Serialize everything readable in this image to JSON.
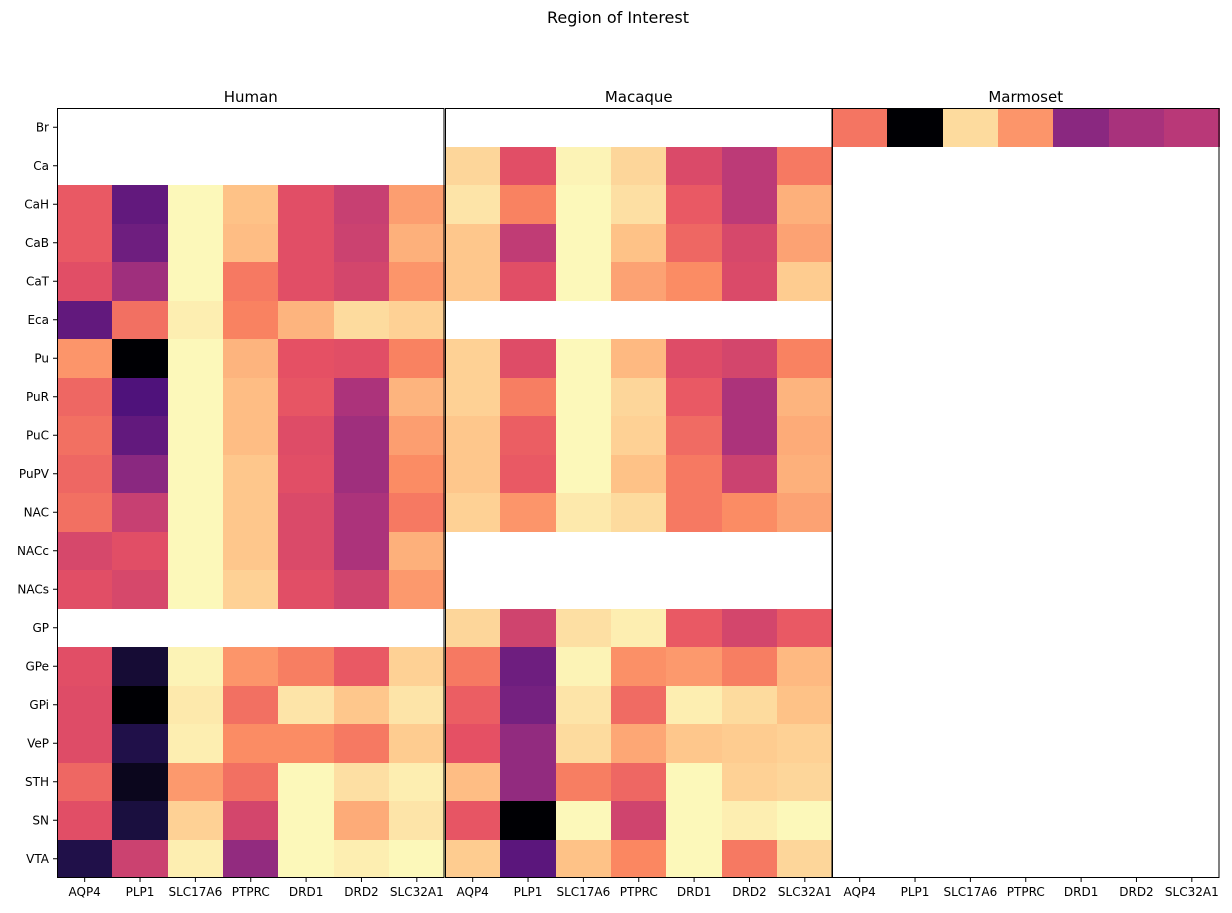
{
  "chart_data": {
    "type": "heatmap",
    "title": "Region of Interest",
    "colormap": "magma",
    "rows": [
      "Br",
      "Ca",
      "CaH",
      "CaB",
      "CaT",
      "Eca",
      "Pu",
      "PuR",
      "PuC",
      "PuPV",
      "NAC",
      "NACc",
      "NACs",
      "GP",
      "GPe",
      "GPi",
      "VeP",
      "STH",
      "SN",
      "VTA"
    ],
    "columns": [
      "AQP4",
      "PLP1",
      "SLC17A6",
      "PTPRC",
      "DRD1",
      "DRD2",
      "SLC32A1"
    ],
    "panels": [
      {
        "name": "Human",
        "values": [
          [
            null,
            null,
            null,
            null,
            null,
            null,
            null
          ],
          [
            null,
            null,
            null,
            null,
            null,
            null,
            null
          ],
          [
            0.65,
            0.3,
            0.99,
            0.88,
            0.62,
            0.55,
            0.8
          ],
          [
            0.65,
            0.33,
            0.99,
            0.87,
            0.62,
            0.56,
            0.84
          ],
          [
            0.62,
            0.45,
            0.99,
            0.72,
            0.62,
            0.58,
            0.78
          ],
          [
            0.3,
            0.7,
            0.97,
            0.74,
            0.85,
            0.93,
            0.91
          ],
          [
            0.78,
            0.0,
            0.99,
            0.85,
            0.63,
            0.62,
            0.74
          ],
          [
            0.68,
            0.25,
            0.99,
            0.87,
            0.64,
            0.48,
            0.85
          ],
          [
            0.7,
            0.3,
            0.99,
            0.87,
            0.61,
            0.45,
            0.8
          ],
          [
            0.68,
            0.4,
            0.99,
            0.89,
            0.62,
            0.45,
            0.76
          ],
          [
            0.7,
            0.55,
            0.99,
            0.89,
            0.6,
            0.48,
            0.72
          ],
          [
            0.59,
            0.62,
            0.99,
            0.89,
            0.6,
            0.48,
            0.84
          ],
          [
            0.62,
            0.59,
            0.99,
            0.91,
            0.62,
            0.57,
            0.79
          ],
          [
            null,
            null,
            null,
            null,
            null,
            null,
            null
          ],
          [
            0.62,
            0.1,
            0.98,
            0.78,
            0.73,
            0.65,
            0.91
          ],
          [
            0.61,
            0.0,
            0.96,
            0.7,
            0.95,
            0.89,
            0.95
          ],
          [
            0.61,
            0.14,
            0.97,
            0.76,
            0.76,
            0.72,
            0.9
          ],
          [
            0.68,
            0.05,
            0.79,
            0.7,
            0.99,
            0.94,
            0.97
          ],
          [
            0.62,
            0.12,
            0.91,
            0.58,
            0.99,
            0.83,
            0.95
          ],
          [
            0.14,
            0.56,
            0.97,
            0.42,
            0.99,
            0.97,
            0.99
          ]
        ]
      },
      {
        "name": "Macaque",
        "values": [
          [
            null,
            null,
            null,
            null,
            null,
            null,
            null
          ],
          [
            0.92,
            0.62,
            0.98,
            0.92,
            0.6,
            0.52,
            0.72
          ],
          [
            0.95,
            0.74,
            0.99,
            0.94,
            0.65,
            0.52,
            0.84
          ],
          [
            0.89,
            0.53,
            0.99,
            0.88,
            0.68,
            0.59,
            0.81
          ],
          [
            0.89,
            0.62,
            0.99,
            0.81,
            0.76,
            0.6,
            0.9
          ],
          [
            null,
            null,
            null,
            null,
            null,
            null,
            null
          ],
          [
            0.91,
            0.61,
            0.99,
            0.86,
            0.61,
            0.58,
            0.74
          ],
          [
            0.91,
            0.73,
            0.99,
            0.92,
            0.65,
            0.48,
            0.85
          ],
          [
            0.89,
            0.66,
            0.99,
            0.91,
            0.69,
            0.48,
            0.83
          ],
          [
            0.89,
            0.65,
            0.99,
            0.88,
            0.72,
            0.56,
            0.84
          ],
          [
            0.91,
            0.78,
            0.96,
            0.93,
            0.72,
            0.76,
            0.81
          ],
          [
            null,
            null,
            null,
            null,
            null,
            null,
            null
          ],
          [
            null,
            null,
            null,
            null,
            null,
            null,
            null
          ],
          [
            0.92,
            0.57,
            0.94,
            0.97,
            0.65,
            0.58,
            0.65
          ],
          [
            0.72,
            0.33,
            0.98,
            0.77,
            0.79,
            0.73,
            0.86
          ],
          [
            0.66,
            0.35,
            0.95,
            0.69,
            0.97,
            0.93,
            0.88
          ],
          [
            0.63,
            0.42,
            0.93,
            0.82,
            0.89,
            0.9,
            0.91
          ],
          [
            0.87,
            0.42,
            0.73,
            0.68,
            0.99,
            0.91,
            0.92
          ],
          [
            0.64,
            0.0,
            0.99,
            0.57,
            0.99,
            0.97,
            0.99
          ],
          [
            0.9,
            0.28,
            0.88,
            0.75,
            0.99,
            0.72,
            0.92
          ]
        ]
      },
      {
        "name": "Marmoset",
        "values": [
          [
            0.71,
            0.0,
            0.93,
            0.78,
            0.4,
            0.47,
            0.51
          ],
          [
            null,
            null,
            null,
            null,
            null,
            null,
            null
          ],
          [
            null,
            null,
            null,
            null,
            null,
            null,
            null
          ],
          [
            null,
            null,
            null,
            null,
            null,
            null,
            null
          ],
          [
            null,
            null,
            null,
            null,
            null,
            null,
            null
          ],
          [
            null,
            null,
            null,
            null,
            null,
            null,
            null
          ],
          [
            null,
            null,
            null,
            null,
            null,
            null,
            null
          ],
          [
            null,
            null,
            null,
            null,
            null,
            null,
            null
          ],
          [
            null,
            null,
            null,
            null,
            null,
            null,
            null
          ],
          [
            null,
            null,
            null,
            null,
            null,
            null,
            null
          ],
          [
            null,
            null,
            null,
            null,
            null,
            null,
            null
          ],
          [
            null,
            null,
            null,
            null,
            null,
            null,
            null
          ],
          [
            null,
            null,
            null,
            null,
            null,
            null,
            null
          ],
          [
            null,
            null,
            null,
            null,
            null,
            null,
            null
          ],
          [
            null,
            null,
            null,
            null,
            null,
            null,
            null
          ],
          [
            null,
            null,
            null,
            null,
            null,
            null,
            null
          ],
          [
            null,
            null,
            null,
            null,
            null,
            null,
            null
          ],
          [
            null,
            null,
            null,
            null,
            null,
            null,
            null
          ],
          [
            null,
            null,
            null,
            null,
            null,
            null,
            null
          ],
          [
            null,
            null,
            null,
            null,
            null,
            null,
            null
          ]
        ]
      }
    ]
  }
}
